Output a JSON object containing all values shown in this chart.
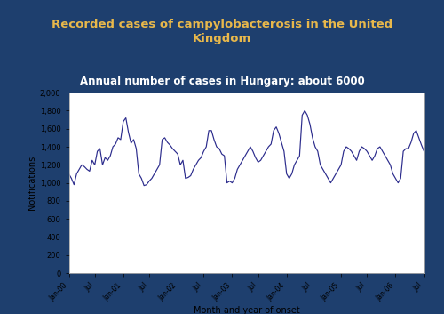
{
  "title1": "Recorded cases of campylobacterosis in the United\nKingdom",
  "title2": "Annual number of cases in Hungary: about 6000",
  "xlabel": "Month and year of onset",
  "ylabel": "Notifications",
  "background_color": "#1e3f6e",
  "plot_background": "#ffffff",
  "title1_color": "#e8b84b",
  "title2_color": "#ffffff",
  "line_color": "#2b2b8c",
  "ylim": [
    0,
    2000
  ],
  "yticks": [
    0,
    200,
    400,
    600,
    800,
    1000,
    1200,
    1400,
    1600,
    1800,
    2000
  ],
  "xtick_labels": [
    "Jan-00",
    "Jul",
    "Jan-01",
    "Jul",
    "Jan-02",
    "Jul",
    "Jan-03",
    "Jul",
    "Jan-04",
    "Jul",
    "Jan-05",
    "Jul",
    "Jan-06",
    "Jul"
  ],
  "values": [
    1100,
    1050,
    980,
    1100,
    1150,
    1200,
    1180,
    1150,
    1130,
    1250,
    1200,
    1350,
    1380,
    1200,
    1280,
    1250,
    1300,
    1400,
    1430,
    1500,
    1480,
    1680,
    1720,
    1560,
    1440,
    1480,
    1380,
    1100,
    1050,
    970,
    980,
    1020,
    1050,
    1100,
    1150,
    1200,
    1480,
    1500,
    1450,
    1420,
    1380,
    1350,
    1320,
    1200,
    1250,
    1050,
    1060,
    1080,
    1150,
    1200,
    1250,
    1280,
    1350,
    1400,
    1580,
    1580,
    1480,
    1400,
    1380,
    1320,
    1300,
    1000,
    1020,
    1000,
    1050,
    1150,
    1200,
    1250,
    1300,
    1350,
    1400,
    1350,
    1280,
    1230,
    1250,
    1300,
    1350,
    1400,
    1430,
    1580,
    1620,
    1550,
    1450,
    1350,
    1100,
    1050,
    1100,
    1200,
    1250,
    1300,
    1750,
    1800,
    1750,
    1650,
    1500,
    1400,
    1350,
    1200,
    1150,
    1100,
    1050,
    1000,
    1050,
    1100,
    1150,
    1200,
    1350,
    1400,
    1380,
    1350,
    1300,
    1250,
    1350,
    1400,
    1380,
    1350,
    1300,
    1250,
    1300,
    1380,
    1400,
    1350,
    1300,
    1250,
    1200,
    1100,
    1050,
    1000,
    1050,
    1350,
    1380,
    1380,
    1450,
    1550,
    1580,
    1500,
    1420,
    1350
  ],
  "border_color": "#aaaaaa",
  "title1_fontsize": 9.5,
  "title2_fontsize": 8.5
}
